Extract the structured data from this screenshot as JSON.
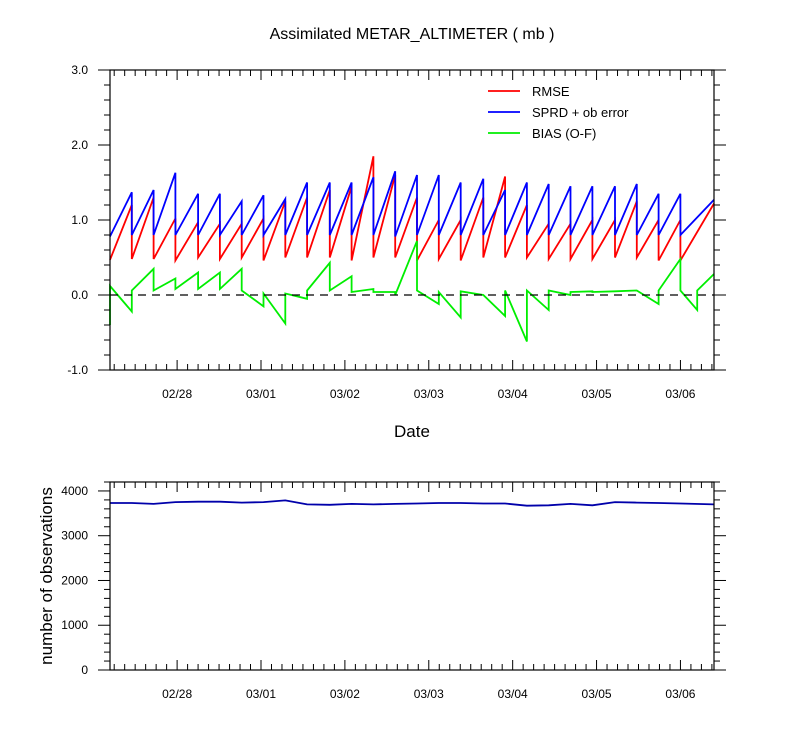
{
  "chart_data": [
    {
      "type": "line",
      "title": "Assimilated METAR_ALTIMETER ( mb )",
      "xlabel": "Date",
      "ylabel": "",
      "ylim": [
        -1.0,
        3.0
      ],
      "yticks": [
        -1.0,
        0.0,
        1.0,
        2.0,
        3.0
      ],
      "ytick_labels": [
        "-1.0",
        "0.0",
        "1.0",
        "2.0",
        "3.0"
      ],
      "xlim": [
        27.2,
        34.4
      ],
      "xticks": [
        28,
        29,
        30,
        31,
        32,
        33,
        34
      ],
      "xtick_labels": [
        "02/28",
        "03/01",
        "03/02",
        "03/03",
        "03/04",
        "03/05",
        "03/06"
      ],
      "reference_line": {
        "y": 0.0,
        "style": "dashed"
      },
      "legend_position": "top-right",
      "series": [
        {
          "name": "RMSE",
          "color": "#ff0000",
          "points": [
            [
              27.2,
              0.47
            ],
            [
              27.46,
              1.2
            ],
            [
              27.46,
              0.48
            ],
            [
              27.72,
              1.3
            ],
            [
              27.72,
              0.48
            ],
            [
              27.98,
              1.02
            ],
            [
              27.98,
              0.46
            ],
            [
              28.25,
              0.97
            ],
            [
              28.25,
              0.5
            ],
            [
              28.51,
              0.95
            ],
            [
              28.51,
              0.48
            ],
            [
              28.77,
              0.95
            ],
            [
              28.77,
              0.5
            ],
            [
              29.03,
              1.02
            ],
            [
              29.03,
              0.46
            ],
            [
              29.29,
              1.25
            ],
            [
              29.29,
              0.5
            ],
            [
              29.55,
              1.3
            ],
            [
              29.55,
              0.5
            ],
            [
              29.82,
              1.4
            ],
            [
              29.82,
              0.5
            ],
            [
              30.08,
              1.45
            ],
            [
              30.08,
              0.46
            ],
            [
              30.34,
              1.85
            ],
            [
              30.34,
              0.5
            ],
            [
              30.6,
              1.6
            ],
            [
              30.6,
              0.5
            ],
            [
              30.86,
              1.3
            ],
            [
              30.86,
              0.46
            ],
            [
              31.12,
              1.0
            ],
            [
              31.12,
              0.48
            ],
            [
              31.38,
              1.0
            ],
            [
              31.38,
              0.46
            ],
            [
              31.65,
              1.3
            ],
            [
              31.65,
              0.5
            ],
            [
              31.91,
              1.58
            ],
            [
              31.91,
              0.5
            ],
            [
              32.17,
              1.2
            ],
            [
              32.17,
              0.5
            ],
            [
              32.43,
              0.95
            ],
            [
              32.43,
              0.48
            ],
            [
              32.69,
              0.95
            ],
            [
              32.69,
              0.48
            ],
            [
              32.95,
              1.0
            ],
            [
              32.95,
              0.48
            ],
            [
              33.22,
              1.0
            ],
            [
              33.22,
              0.5
            ],
            [
              33.48,
              1.25
            ],
            [
              33.48,
              0.5
            ],
            [
              33.74,
              1.0
            ],
            [
              33.74,
              0.46
            ],
            [
              34.0,
              1.0
            ],
            [
              34.0,
              0.46
            ],
            [
              34.4,
              1.22
            ]
          ]
        },
        {
          "name": "SPRD + ob error",
          "color": "#0000ff",
          "points": [
            [
              27.2,
              0.78
            ],
            [
              27.46,
              1.37
            ],
            [
              27.46,
              0.8
            ],
            [
              27.72,
              1.4
            ],
            [
              27.72,
              0.8
            ],
            [
              27.98,
              1.63
            ],
            [
              27.98,
              0.8
            ],
            [
              28.25,
              1.35
            ],
            [
              28.25,
              0.8
            ],
            [
              28.51,
              1.35
            ],
            [
              28.51,
              0.8
            ],
            [
              28.77,
              1.25
            ],
            [
              28.77,
              0.8
            ],
            [
              29.03,
              1.33
            ],
            [
              29.03,
              0.8
            ],
            [
              29.29,
              1.28
            ],
            [
              29.29,
              0.8
            ],
            [
              29.55,
              1.5
            ],
            [
              29.55,
              0.8
            ],
            [
              29.82,
              1.5
            ],
            [
              29.82,
              0.8
            ],
            [
              30.08,
              1.5
            ],
            [
              30.08,
              0.8
            ],
            [
              30.34,
              1.57
            ],
            [
              30.34,
              0.8
            ],
            [
              30.6,
              1.65
            ],
            [
              30.6,
              0.78
            ],
            [
              30.86,
              1.6
            ],
            [
              30.86,
              0.8
            ],
            [
              31.12,
              1.6
            ],
            [
              31.12,
              0.8
            ],
            [
              31.38,
              1.5
            ],
            [
              31.38,
              0.8
            ],
            [
              31.65,
              1.55
            ],
            [
              31.65,
              0.8
            ],
            [
              31.91,
              1.4
            ],
            [
              31.91,
              0.8
            ],
            [
              32.17,
              1.5
            ],
            [
              32.17,
              0.8
            ],
            [
              32.43,
              1.48
            ],
            [
              32.43,
              0.8
            ],
            [
              32.69,
              1.45
            ],
            [
              32.69,
              0.8
            ],
            [
              32.95,
              1.45
            ],
            [
              32.95,
              0.8
            ],
            [
              33.22,
              1.45
            ],
            [
              33.22,
              0.8
            ],
            [
              33.48,
              1.48
            ],
            [
              33.48,
              0.8
            ],
            [
              33.74,
              1.35
            ],
            [
              33.74,
              0.8
            ],
            [
              34.0,
              1.35
            ],
            [
              34.0,
              0.8
            ],
            [
              34.4,
              1.27
            ]
          ]
        },
        {
          "name": "BIAS (O-F)",
          "color": "#00ee00",
          "points": [
            [
              27.2,
              -0.4
            ],
            [
              27.2,
              0.12
            ],
            [
              27.46,
              -0.22
            ],
            [
              27.46,
              0.06
            ],
            [
              27.72,
              0.35
            ],
            [
              27.72,
              0.06
            ],
            [
              27.98,
              0.22
            ],
            [
              27.98,
              0.08
            ],
            [
              28.25,
              0.3
            ],
            [
              28.25,
              0.08
            ],
            [
              28.51,
              0.3
            ],
            [
              28.51,
              0.08
            ],
            [
              28.77,
              0.35
            ],
            [
              28.77,
              0.06
            ],
            [
              29.03,
              -0.15
            ],
            [
              29.03,
              0.02
            ],
            [
              29.29,
              -0.38
            ],
            [
              29.29,
              0.02
            ],
            [
              29.55,
              -0.05
            ],
            [
              29.55,
              0.06
            ],
            [
              29.82,
              0.43
            ],
            [
              29.82,
              0.06
            ],
            [
              30.08,
              0.25
            ],
            [
              30.08,
              0.04
            ],
            [
              30.34,
              0.08
            ],
            [
              30.34,
              0.04
            ],
            [
              30.6,
              0.04
            ],
            [
              30.6,
              0.0
            ],
            [
              30.86,
              0.72
            ],
            [
              30.86,
              0.06
            ],
            [
              31.12,
              -0.12
            ],
            [
              31.12,
              0.04
            ],
            [
              31.38,
              -0.3
            ],
            [
              31.38,
              0.05
            ],
            [
              31.65,
              0.0
            ],
            [
              31.65,
              0.0
            ],
            [
              31.91,
              -0.28
            ],
            [
              31.91,
              0.06
            ],
            [
              32.17,
              -0.62
            ],
            [
              32.17,
              0.06
            ],
            [
              32.43,
              -0.2
            ],
            [
              32.43,
              0.06
            ],
            [
              32.69,
              0.0
            ],
            [
              32.69,
              0.04
            ],
            [
              32.95,
              0.05
            ],
            [
              32.95,
              0.04
            ],
            [
              33.22,
              0.05
            ],
            [
              33.22,
              0.05
            ],
            [
              33.48,
              0.06
            ],
            [
              33.48,
              0.06
            ],
            [
              33.74,
              -0.12
            ],
            [
              33.74,
              0.06
            ],
            [
              34.0,
              0.48
            ],
            [
              34.0,
              0.06
            ],
            [
              34.2,
              -0.2
            ],
            [
              34.2,
              0.06
            ],
            [
              34.4,
              0.28
            ]
          ]
        }
      ]
    },
    {
      "type": "line",
      "title": "",
      "xlabel": "",
      "ylabel": "number of observations",
      "ylim": [
        0,
        4200
      ],
      "yticks": [
        0,
        1000,
        2000,
        3000,
        4000
      ],
      "ytick_labels": [
        "0",
        "1000",
        "2000",
        "3000",
        "4000"
      ],
      "xlim": [
        27.2,
        34.4
      ],
      "xticks": [
        28,
        29,
        30,
        31,
        32,
        33,
        34
      ],
      "xtick_labels": [
        "02/28",
        "03/01",
        "03/02",
        "03/03",
        "03/04",
        "03/05",
        "03/06"
      ],
      "series": [
        {
          "name": "number of observations",
          "color": "#0000aa",
          "points": [
            [
              27.2,
              3730
            ],
            [
              27.46,
              3730
            ],
            [
              27.72,
              3710
            ],
            [
              27.98,
              3750
            ],
            [
              28.25,
              3760
            ],
            [
              28.51,
              3760
            ],
            [
              28.77,
              3740
            ],
            [
              29.03,
              3750
            ],
            [
              29.29,
              3790
            ],
            [
              29.55,
              3700
            ],
            [
              29.82,
              3690
            ],
            [
              30.08,
              3710
            ],
            [
              30.34,
              3700
            ],
            [
              30.6,
              3710
            ],
            [
              30.86,
              3720
            ],
            [
              31.12,
              3730
            ],
            [
              31.38,
              3730
            ],
            [
              31.65,
              3720
            ],
            [
              31.91,
              3720
            ],
            [
              32.17,
              3670
            ],
            [
              32.43,
              3680
            ],
            [
              32.69,
              3710
            ],
            [
              32.95,
              3680
            ],
            [
              33.22,
              3750
            ],
            [
              33.48,
              3740
            ],
            [
              33.74,
              3730
            ],
            [
              34.0,
              3720
            ],
            [
              34.4,
              3700
            ]
          ]
        }
      ]
    }
  ]
}
